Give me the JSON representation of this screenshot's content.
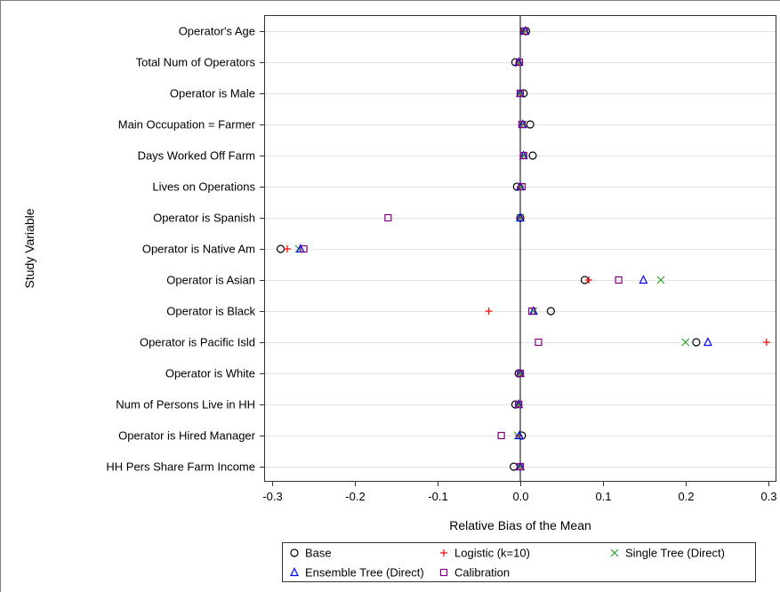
{
  "chart_data": {
    "type": "scatter",
    "orientation": "horizontal-dot-plot",
    "title": "",
    "xlabel": "Relative Bias of the Mean",
    "ylabel": "Study Variable",
    "xlim": [
      -0.31,
      0.31
    ],
    "xticks": [
      -0.3,
      -0.2,
      -0.1,
      0.0,
      0.1,
      0.2,
      0.3
    ],
    "xtick_labels": [
      "-0.3",
      "-0.2",
      "-0.1",
      "0.0",
      "0.1",
      "0.2",
      "0.3"
    ],
    "reference_line_x": 0,
    "grid": "horizontal",
    "legend_placement": "bottom",
    "categories": [
      "Operator's Age",
      "Total Num of Operators",
      "Operator is Male",
      "Main Occupation = Farmer",
      "Days Worked Off Farm",
      "Lives on Operations",
      "Operator is Spanish",
      "Operator is Native Am",
      "Operator is Asian",
      "Operator is Black",
      "Operator is Pacific Isld",
      "Operator is White",
      "Num of Persons Live in HH",
      "Operator is Hired Manager",
      "HH Pers Share Farm Income"
    ],
    "series": [
      {
        "name": "Base",
        "marker": "circle",
        "color": "#000000",
        "values": [
          0.007,
          -0.006,
          0.004,
          0.012,
          0.015,
          -0.004,
          0.0,
          -0.29,
          0.078,
          0.037,
          0.213,
          -0.002,
          -0.006,
          0.002,
          -0.008
        ]
      },
      {
        "name": "Logistic (k=10)",
        "marker": "plus",
        "color": "#ff0000",
        "values": [
          0.005,
          -0.002,
          0.0,
          0.002,
          0.003,
          0.0,
          0.0,
          -0.282,
          0.083,
          -0.038,
          0.298,
          0.0,
          -0.002,
          -0.002,
          0.0
        ]
      },
      {
        "name": "Single Tree (Direct)",
        "marker": "x",
        "color": "#2ca02c",
        "values": [
          0.006,
          -0.002,
          0.0,
          0.003,
          0.004,
          0.0,
          0.0,
          -0.268,
          0.17,
          0.016,
          0.2,
          0.0,
          -0.002,
          -0.003,
          0.0
        ]
      },
      {
        "name": "Ensemble Tree (Direct)",
        "marker": "triangle",
        "color": "#0000ff",
        "values": [
          0.006,
          -0.002,
          0.0,
          0.003,
          0.004,
          0.0,
          0.0,
          -0.266,
          0.149,
          0.016,
          0.227,
          0.0,
          -0.002,
          -0.001,
          0.0
        ]
      },
      {
        "name": "Calibration",
        "marker": "square",
        "color": "#800080",
        "values": [
          0.005,
          -0.001,
          0.0,
          0.002,
          0.004,
          0.002,
          -0.16,
          -0.262,
          0.119,
          0.014,
          0.022,
          0.0,
          -0.002,
          -0.023,
          0.0
        ]
      }
    ]
  }
}
